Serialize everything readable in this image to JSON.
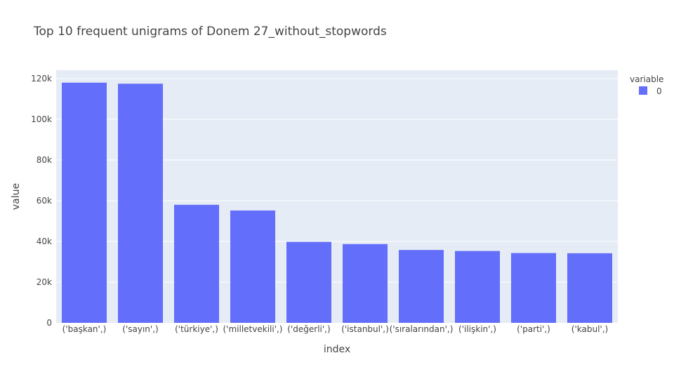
{
  "chart_data": {
    "type": "bar",
    "title": "Top 10 frequent unigrams of Donem 27_without_stopwords",
    "xlabel": "index",
    "ylabel": "value",
    "categories": [
      "('başkan',)",
      "('sayın',)",
      "('türkiye',)",
      "('milletvekili',)",
      "('değerli',)",
      "('istanbul',)",
      "('sıralarından',)",
      "('ilişkin',)",
      "('parti',)",
      "('kabul',)"
    ],
    "series": [
      {
        "name": "0",
        "values": [
          118000,
          117500,
          58000,
          55200,
          39800,
          38700,
          35800,
          35300,
          34300,
          34200
        ]
      }
    ],
    "ylim": [
      0,
      120000
    ],
    "yticks": [
      0,
      20000,
      40000,
      60000,
      80000,
      100000,
      120000
    ],
    "ytick_labels": [
      "0",
      "20k",
      "40k",
      "60k",
      "80k",
      "100k",
      "120k"
    ],
    "legend": {
      "title": "variable",
      "position": "top-right"
    },
    "grid": true,
    "colors": {
      "bar": "#636efa",
      "plot_bg": "#e5ecf6",
      "grid": "#ffffff"
    }
  }
}
